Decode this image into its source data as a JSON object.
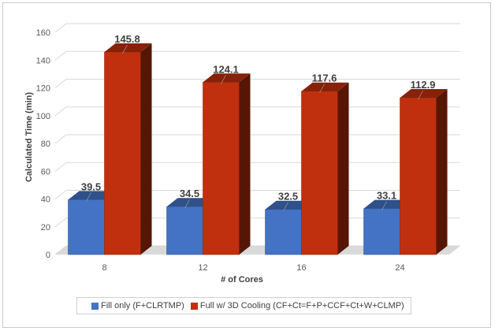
{
  "chart_data": {
    "type": "bar",
    "categories": [
      "8",
      "12",
      "16",
      "24"
    ],
    "series": [
      {
        "name": "Fill only (F+CLRTMP)",
        "values": [
          39.5,
          34.5,
          32.5,
          33.1
        ],
        "color": "#4472C4"
      },
      {
        "name": "Full w/ 3D Cooling (CF+Ct=F+P+CCF+Ct+W+CLMP)",
        "values": [
          145.8,
          124.1,
          117.6,
          112.9
        ],
        "color": "#C0300E"
      }
    ],
    "data_labels": [
      [
        "39.5",
        "34.5",
        "32.5",
        "33.1"
      ],
      [
        "145.8",
        "124.1",
        "117.6",
        "112.9"
      ]
    ],
    "xlabel": "# of Cores",
    "ylabel": "Calculated Time (min)",
    "ylim": [
      0,
      160
    ],
    "yticks": [
      "0",
      "20",
      "40",
      "60",
      "80",
      "100",
      "120",
      "140",
      "160"
    ],
    "grid": true,
    "legend_position": "bottom",
    "three_d": true
  }
}
